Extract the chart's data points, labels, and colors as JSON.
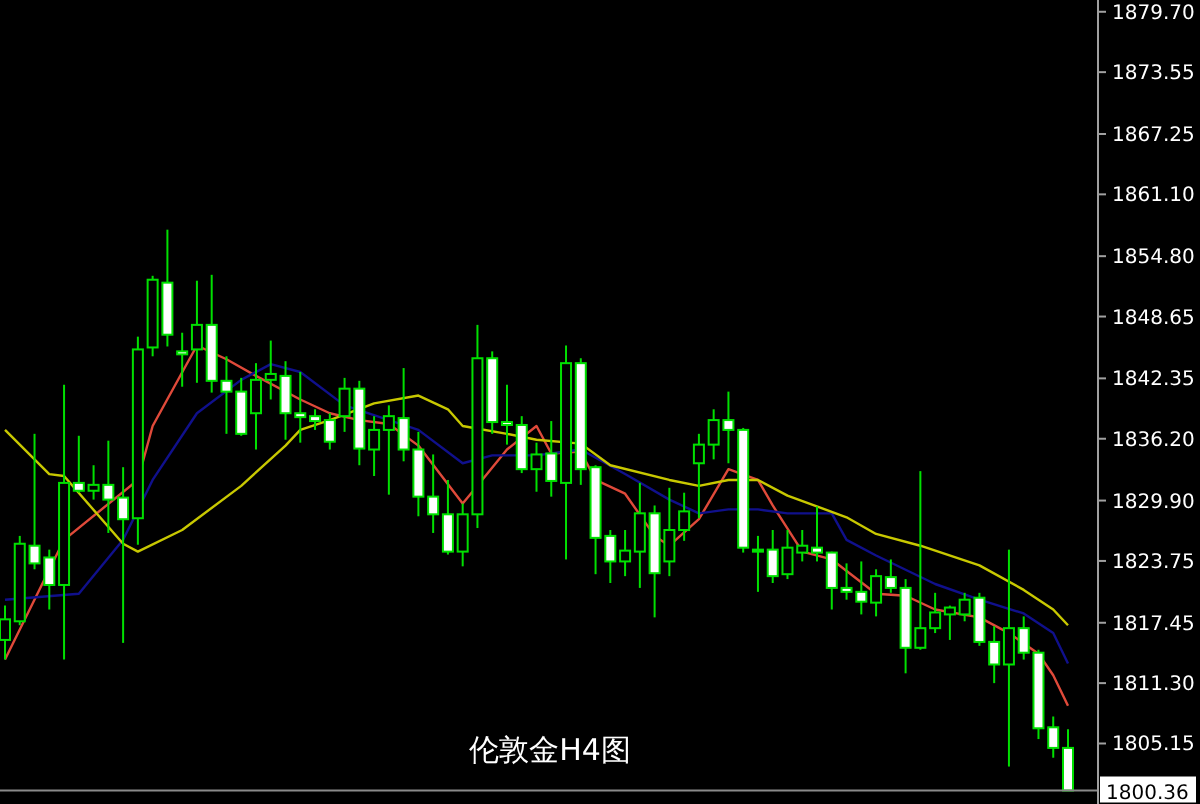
{
  "chart_data": {
    "type": "candlestick",
    "title": "伦敦金H4图",
    "categories": [
      null,
      null,
      null,
      null,
      null,
      null,
      null,
      null,
      null,
      null,
      null,
      null,
      null,
      null,
      null,
      null,
      null,
      null,
      null,
      null,
      null,
      null,
      null,
      null,
      null,
      null,
      null,
      null,
      null,
      null,
      null,
      null,
      null,
      null,
      null,
      null,
      null,
      null,
      null,
      null,
      null,
      null,
      null,
      null,
      null,
      null,
      null,
      null,
      null,
      null,
      null,
      null,
      null,
      null,
      null,
      null,
      null,
      null,
      null,
      null,
      null,
      null,
      null,
      null,
      null,
      null,
      null,
      null,
      null,
      null,
      null,
      null,
      null
    ],
    "color": "#00e000",
    "ohlc": [
      [
        1815.7,
        1819.2,
        1813.7,
        1817.8
      ],
      [
        1817.6,
        1826.3,
        1817.2,
        1825.5
      ],
      [
        1825.3,
        1836.7,
        1822.9,
        1823.5
      ],
      [
        1824.1,
        1824.9,
        1818.8,
        1821.3
      ],
      [
        1821.3,
        1841.7,
        1813.7,
        1831.7
      ],
      [
        1831.7,
        1836.5,
        1830.7,
        1830.9
      ],
      [
        1830.9,
        1833.5,
        1830.0,
        1831.5
      ],
      [
        1831.5,
        1836.0,
        1826.6,
        1830.0
      ],
      [
        1830.2,
        1833.3,
        1815.4,
        1828.0
      ],
      [
        1828.1,
        1846.6,
        1825.4,
        1845.3
      ],
      [
        1845.5,
        1852.8,
        1844.6,
        1852.4
      ],
      [
        1852.1,
        1857.5,
        1845.6,
        1846.8
      ],
      [
        1845.1,
        1847.0,
        1841.5,
        1844.8
      ],
      [
        1845.3,
        1852.3,
        1841.9,
        1847.8
      ],
      [
        1847.8,
        1852.9,
        1840.9,
        1842.1
      ],
      [
        1842.1,
        1844.6,
        1836.7,
        1841.0
      ],
      [
        1841.0,
        1842.4,
        1836.5,
        1836.7
      ],
      [
        1838.8,
        1843.9,
        1835.1,
        1842.2
      ],
      [
        1842.2,
        1846.2,
        1840.2,
        1842.8
      ],
      [
        1842.6,
        1844.1,
        1836.1,
        1838.8
      ],
      [
        1838.8,
        1843.0,
        1835.8,
        1838.4
      ],
      [
        1838.5,
        1839.2,
        1837.1,
        1838.0
      ],
      [
        1838.1,
        1838.8,
        1835.1,
        1835.9
      ],
      [
        1838.5,
        1842.4,
        1836.9,
        1841.3
      ],
      [
        1841.3,
        1842.1,
        1833.5,
        1835.2
      ],
      [
        1835.1,
        1838.5,
        1832.4,
        1837.1
      ],
      [
        1837.1,
        1839.6,
        1830.5,
        1838.5
      ],
      [
        1838.3,
        1843.4,
        1833.9,
        1835.1
      ],
      [
        1835.1,
        1836.9,
        1828.3,
        1830.3
      ],
      [
        1830.3,
        1834.6,
        1826.6,
        1828.5
      ],
      [
        1828.5,
        1832.0,
        1824.4,
        1824.7
      ],
      [
        1824.7,
        1829.6,
        1823.2,
        1828.5
      ],
      [
        1828.5,
        1847.8,
        1827.1,
        1844.4
      ],
      [
        1844.4,
        1845.1,
        1836.7,
        1837.9
      ],
      [
        1837.9,
        1841.7,
        1835.6,
        1837.6
      ],
      [
        1837.6,
        1838.5,
        1832.7,
        1833.1
      ],
      [
        1833.1,
        1835.8,
        1830.8,
        1834.6
      ],
      [
        1834.7,
        1838.0,
        1830.3,
        1831.9
      ],
      [
        1831.7,
        1845.7,
        1823.9,
        1843.9
      ],
      [
        1843.9,
        1844.4,
        1831.5,
        1833.1
      ],
      [
        1833.3,
        1833.5,
        1822.4,
        1826.1
      ],
      [
        1826.3,
        1826.9,
        1821.5,
        1823.7
      ],
      [
        1823.7,
        1826.9,
        1822.2,
        1824.8
      ],
      [
        1824.7,
        1831.7,
        1821.0,
        1828.6
      ],
      [
        1828.6,
        1829.4,
        1818.0,
        1822.5
      ],
      [
        1823.7,
        1831.2,
        1822.2,
        1826.9
      ],
      [
        1826.9,
        1830.7,
        1825.8,
        1828.8
      ],
      [
        1833.7,
        1836.7,
        1828.1,
        1835.6
      ],
      [
        1835.6,
        1839.2,
        1834.1,
        1838.1
      ],
      [
        1838.1,
        1841.0,
        1833.7,
        1837.1
      ],
      [
        1837.1,
        1837.3,
        1824.6,
        1825.1
      ],
      [
        1824.9,
        1826.3,
        1820.6,
        1824.8
      ],
      [
        1824.9,
        1826.9,
        1821.5,
        1822.2
      ],
      [
        1822.4,
        1826.9,
        1821.9,
        1825.1
      ],
      [
        1824.6,
        1826.9,
        1823.7,
        1825.3
      ],
      [
        1825.1,
        1829.3,
        1823.7,
        1824.6
      ],
      [
        1824.6,
        1824.7,
        1818.8,
        1821.0
      ],
      [
        1821.0,
        1823.5,
        1819.8,
        1820.6
      ],
      [
        1820.6,
        1823.7,
        1818.3,
        1819.6
      ],
      [
        1819.5,
        1822.9,
        1818.1,
        1822.2
      ],
      [
        1822.1,
        1823.9,
        1820.5,
        1821.0
      ],
      [
        1821.0,
        1821.9,
        1812.3,
        1814.9
      ],
      [
        1814.9,
        1832.9,
        1814.7,
        1816.9
      ],
      [
        1816.9,
        1820.5,
        1816.4,
        1818.5
      ],
      [
        1818.3,
        1819.2,
        1815.7,
        1819.0
      ],
      [
        1818.3,
        1820.5,
        1817.6,
        1819.8
      ],
      [
        1820.0,
        1820.5,
        1815.1,
        1815.5
      ],
      [
        1815.5,
        1817.1,
        1811.3,
        1813.2
      ],
      [
        1813.2,
        1824.9,
        1802.8,
        1816.9
      ],
      [
        1816.9,
        1818.1,
        1813.7,
        1814.4
      ],
      [
        1814.4,
        1814.7,
        1805.6,
        1806.7
      ],
      [
        1806.8,
        1807.9,
        1803.7,
        1804.7
      ],
      [
        1804.7,
        1806.6,
        1800.3,
        1800.36
      ]
    ],
    "series": [
      {
        "type": "line",
        "color": "#e04a3a",
        "values": [
          1813.7,
          null,
          null,
          null,
          1825.9,
          null,
          null,
          null,
          null,
          1832.0,
          1837.5,
          null,
          null,
          1845.7,
          null,
          1844.3,
          null,
          1842.6,
          null,
          null,
          1840.2,
          null,
          1838.8,
          null,
          1838.1,
          null,
          1837.7,
          null,
          1835.5,
          null,
          null,
          1829.6,
          1831.4,
          null,
          1835.1,
          null,
          1837.5,
          1834.7,
          null,
          1834.9,
          1832.0,
          null,
          1830.6,
          null,
          1826.3,
          1825.3,
          null,
          1828.0,
          null,
          1833.1,
          null,
          1832.0,
          1829.4,
          null,
          1824.7,
          null,
          1823.9,
          null,
          null,
          1820.4,
          null,
          1820.2,
          null,
          1818.8,
          null,
          null,
          1818.0,
          null,
          1816.4,
          null,
          1814.3,
          1812.1,
          1809.0
        ]
      },
      {
        "type": "line",
        "color": "#10108c",
        "values": [
          1819.8,
          null,
          null,
          null,
          null,
          1820.4,
          null,
          null,
          1825.9,
          null,
          1832.0,
          null,
          null,
          1838.8,
          null,
          null,
          1842.2,
          null,
          1843.8,
          null,
          1843.0,
          null,
          null,
          1839.6,
          null,
          null,
          null,
          null,
          1837.1,
          null,
          null,
          1833.7,
          null,
          1834.5,
          null,
          null,
          1834.5,
          null,
          null,
          1835.1,
          null,
          null,
          1832.6,
          null,
          null,
          1830.0,
          null,
          1828.6,
          null,
          1829.0,
          null,
          1829.0,
          null,
          1828.6,
          null,
          null,
          1828.6,
          1825.9,
          null,
          1824.3,
          null,
          null,
          null,
          1821.4,
          null,
          null,
          1819.8,
          null,
          null,
          1818.4,
          null,
          1816.4,
          1813.3
        ]
      },
      {
        "type": "line",
        "color": "#c8c800",
        "values": [
          1837.1,
          null,
          null,
          1832.6,
          1832.4,
          null,
          null,
          null,
          1825.5,
          1824.7,
          null,
          null,
          1826.9,
          null,
          null,
          null,
          1831.4,
          null,
          null,
          1835.5,
          1837.1,
          null,
          1838.1,
          null,
          null,
          1839.8,
          null,
          null,
          1840.6,
          null,
          1839.2,
          1837.5,
          null,
          null,
          1836.7,
          null,
          1836.1,
          null,
          null,
          1835.7,
          null,
          1833.5,
          null,
          null,
          null,
          1832.0,
          null,
          1831.4,
          null,
          1832.0,
          null,
          1832.0,
          null,
          1830.4,
          null,
          null,
          null,
          1828.2,
          null,
          1826.5,
          null,
          null,
          1825.3,
          null,
          null,
          null,
          1823.3,
          null,
          null,
          1820.8,
          null,
          1818.8,
          1817.2
        ]
      }
    ],
    "ylim": [
      1799.8,
      1880.9
    ],
    "yticks": [
      {
        "value": 1879.7,
        "label": "1879.70"
      },
      {
        "value": 1873.55,
        "label": "1873.55"
      },
      {
        "value": 1867.25,
        "label": "1867.25"
      },
      {
        "value": 1861.1,
        "label": "1861.10"
      },
      {
        "value": 1854.8,
        "label": "1854.80"
      },
      {
        "value": 1848.65,
        "label": "1848.65"
      },
      {
        "value": 1842.35,
        "label": "1842.35"
      },
      {
        "value": 1836.2,
        "label": "1836.20"
      },
      {
        "value": 1829.9,
        "label": "1829.90"
      },
      {
        "value": 1823.75,
        "label": "1823.75"
      },
      {
        "value": 1817.45,
        "label": "1817.45"
      },
      {
        "value": 1811.3,
        "label": "1811.30"
      },
      {
        "value": 1805.15,
        "label": "1805.15"
      }
    ],
    "ref_lines": [
      {
        "axis": "y",
        "value": 1800.36,
        "label": "1800.36",
        "color": "#8a8a8a"
      }
    ],
    "tick_labels": "y"
  }
}
